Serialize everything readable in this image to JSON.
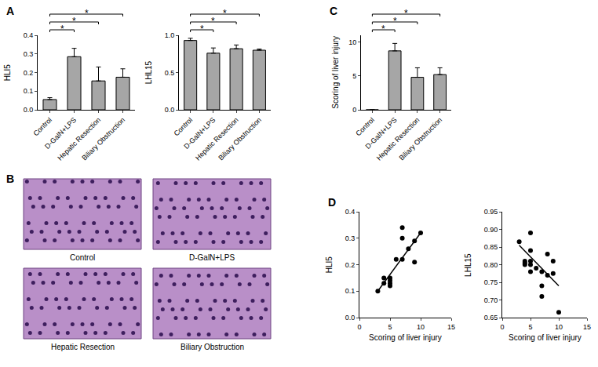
{
  "chart_data": [
    {
      "panel": "A",
      "type": "bar",
      "y_label": "HLI5",
      "categories": [
        "Control",
        "D-GalN+LPS",
        "Hepatic Resection",
        "Biliary Obstruction"
      ],
      "values": [
        0.055,
        0.285,
        0.155,
        0.175
      ],
      "errors": [
        0.01,
        0.045,
        0.075,
        0.045
      ],
      "color": "#a6a6a6",
      "ylim": [
        0,
        0.4
      ],
      "yticks": [
        {
          "value": 0,
          "label": "0.0"
        },
        0.1,
        0.2,
        0.3,
        0.4
      ],
      "comparisons": [
        {
          "from": 0,
          "to": 1,
          "label": "*"
        },
        {
          "from": 0,
          "to": 2,
          "label": "*"
        },
        {
          "from": 0,
          "to": 3,
          "label": "*"
        }
      ]
    },
    {
      "type": "bar",
      "y_label": "LHL15",
      "categories": [
        "Control",
        "D-GalN+LPS",
        "Hepatic Resection",
        "Biliary Obstruction"
      ],
      "values": [
        0.93,
        0.76,
        0.82,
        0.8
      ],
      "errors": [
        0.03,
        0.07,
        0.05,
        0.015
      ],
      "color": "#a6a6a6",
      "ylim": [
        0,
        1
      ],
      "yticks": [
        {
          "value": 0,
          "label": "0.0"
        },
        0.5,
        {
          "value": 1,
          "label": "1.0"
        }
      ],
      "comparisons": [
        {
          "from": 0,
          "to": 1,
          "label": "*"
        },
        {
          "from": 0,
          "to": 2,
          "label": "*"
        },
        {
          "from": 0,
          "to": 3,
          "label": "*"
        }
      ]
    },
    {
      "panel": "C",
      "type": "bar",
      "y_label": "Scoring of liver injury",
      "categories": [
        "Control",
        "D-GalN+LPS",
        "Hepatic Resection",
        "Biliary Obstruction"
      ],
      "values": [
        0,
        8.7,
        4.8,
        5.2
      ],
      "errors": [
        0,
        1.1,
        1.4,
        1.0
      ],
      "color": "#a6a6a6",
      "ylim": [
        0,
        11
      ],
      "yticks": [
        0,
        5,
        10
      ],
      "comparisons": [
        {
          "from": 0,
          "to": 1,
          "label": "*"
        },
        {
          "from": 0,
          "to": 2,
          "label": "*"
        },
        {
          "from": 0,
          "to": 3,
          "label": "*"
        }
      ]
    },
    {
      "panel": "B",
      "type": "image",
      "captions": [
        "Control",
        "D-GalN+LPS",
        "Hepatic Resection",
        "Biliary Obstruction"
      ]
    },
    {
      "panel": "D",
      "type": "scatter",
      "x_label": "Scoring of liver injury",
      "y_label": "HLI5",
      "x": [
        3,
        4,
        4,
        5,
        5,
        5,
        5,
        6,
        7,
        7,
        7,
        8,
        9,
        9,
        10
      ],
      "values": [
        0.1,
        0.13,
        0.15,
        0.12,
        0.13,
        0.14,
        0.15,
        0.22,
        0.34,
        0.3,
        0.22,
        0.26,
        0.29,
        0.21,
        0.32
      ],
      "fit": {
        "x": [
          3,
          10
        ],
        "y": [
          0.1,
          0.32
        ]
      },
      "color": "#000000",
      "xlim": [
        0,
        15
      ],
      "xticks": [
        0,
        5,
        10,
        15
      ],
      "ylim": [
        0,
        0.4
      ],
      "yticks": [
        {
          "value": 0,
          "label": "0.0"
        },
        0.1,
        0.2,
        0.3,
        0.4
      ]
    },
    {
      "type": "scatter",
      "x_label": "Scoring of liver injury",
      "y_label": "LHL15",
      "x": [
        3,
        4,
        4,
        4,
        5,
        5,
        5,
        5,
        5,
        6,
        7,
        7,
        7,
        8,
        8,
        9,
        9,
        10
      ],
      "values": [
        0.865,
        0.8,
        0.81,
        0.805,
        0.89,
        0.84,
        0.81,
        0.8,
        0.78,
        0.79,
        0.78,
        0.71,
        0.74,
        0.83,
        0.77,
        0.81,
        0.775,
        0.665
      ],
      "fit": {
        "x": [
          3,
          10
        ],
        "y": [
          0.855,
          0.74
        ]
      },
      "color": "#000000",
      "xlim": [
        0,
        15
      ],
      "xticks": [
        0,
        5,
        10,
        15
      ],
      "ylim": [
        0.65,
        0.95
      ],
      "yticks": [
        0.65,
        {
          "value": 0.7,
          "label": "0.70"
        },
        0.75,
        {
          "value": 0.8,
          "label": "0.80"
        },
        0.85,
        {
          "value": 0.9,
          "label": "0.90"
        },
        0.95
      ]
    }
  ]
}
